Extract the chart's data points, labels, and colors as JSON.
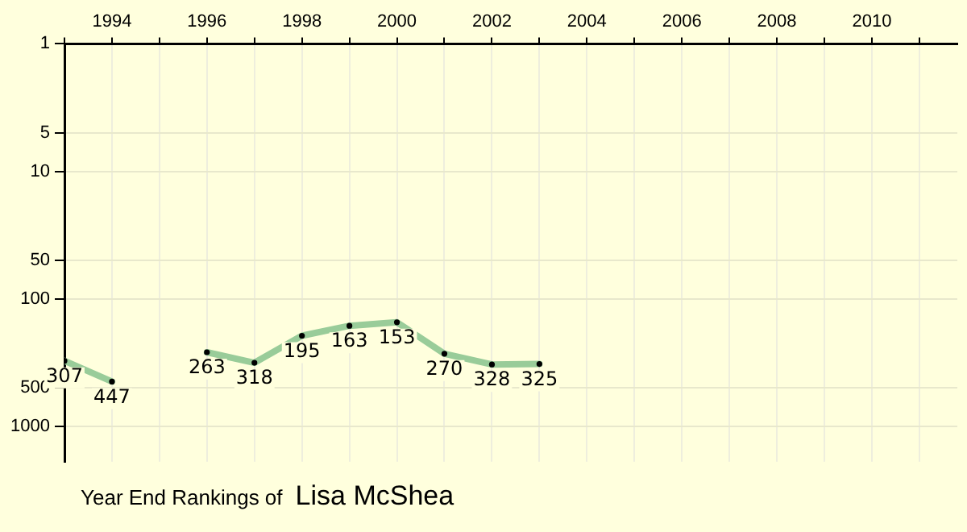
{
  "chart_data": {
    "type": "line",
    "title": "Year End Rankings of",
    "subtitle": "Lisa McShea",
    "x": [
      1993,
      1994,
      1995,
      1996,
      1997,
      1998,
      1999,
      2000,
      2001,
      2002,
      2003
    ],
    "series": [
      {
        "color": "#99cc99",
        "values": [
          307,
          447,
          null,
          263,
          318,
          195,
          163,
          153,
          270,
          328,
          325
        ]
      }
    ],
    "xlim": [
      1993,
      2011.8
    ],
    "xticks": [
      {
        "value": 1993,
        "label": null
      },
      1994,
      {
        "value": 1995,
        "label": null
      },
      1996,
      {
        "value": 1997,
        "label": null
      },
      1998,
      {
        "value": 1999,
        "label": null
      },
      2000,
      {
        "value": 2001,
        "label": null
      },
      2002,
      {
        "value": 2003,
        "label": null
      },
      2004,
      {
        "value": 2005,
        "label": null
      },
      2006,
      {
        "value": 2007,
        "label": null
      },
      2008,
      {
        "value": 2009,
        "label": null
      },
      2010,
      {
        "value": 2011,
        "label": null
      }
    ],
    "ylim": [
      1900,
      1
    ],
    "yticks": [
      1,
      5,
      10,
      50,
      100,
      500,
      1000
    ],
    "log": "y",
    "grid": true,
    "data_labels": true,
    "marker": "circle",
    "line_style": "solid"
  }
}
